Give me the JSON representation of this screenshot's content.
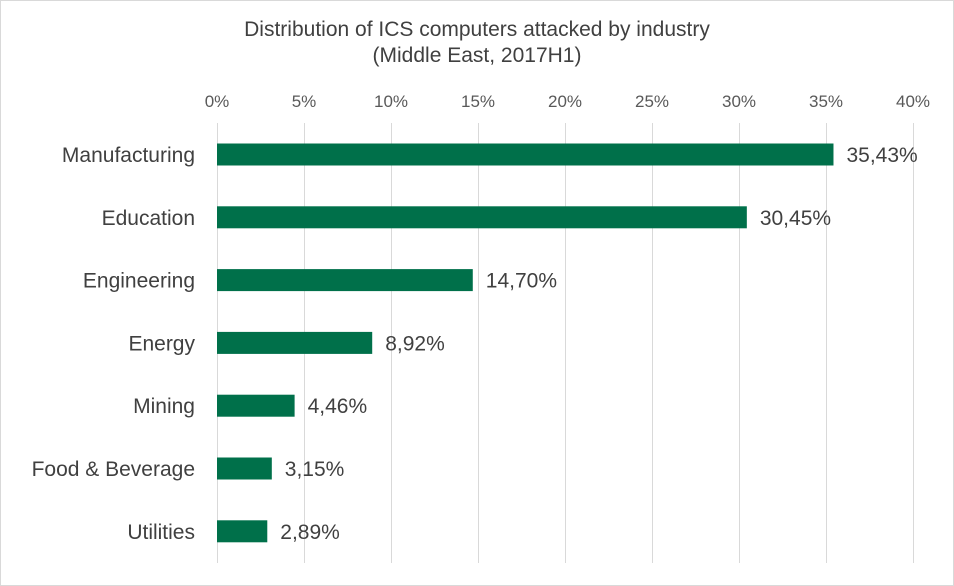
{
  "chart_data": {
    "type": "bar",
    "orientation": "horizontal",
    "title": "Distribution of ICS computers attacked by industry",
    "subtitle": "(Middle East, 2017H1)",
    "categories": [
      "Manufacturing",
      "Education",
      "Engineering",
      "Energy",
      "Mining",
      "Food & Beverage",
      "Utilities"
    ],
    "values": [
      35.43,
      30.45,
      14.7,
      8.92,
      4.46,
      3.15,
      2.89
    ],
    "data_labels": [
      "35,43%",
      "30,45%",
      "14,70%",
      "8,92%",
      "4,46%",
      "3,15%",
      "2,89%"
    ],
    "xlim": [
      0,
      40
    ],
    "x_ticks": [
      0,
      5,
      10,
      15,
      20,
      25,
      30,
      35,
      40
    ],
    "x_tick_labels": [
      "0%",
      "5%",
      "10%",
      "15%",
      "20%",
      "25%",
      "30%",
      "35%",
      "40%"
    ],
    "x_axis_position": "top",
    "grid": true,
    "legend": "none",
    "bar_color": "#00704a"
  }
}
